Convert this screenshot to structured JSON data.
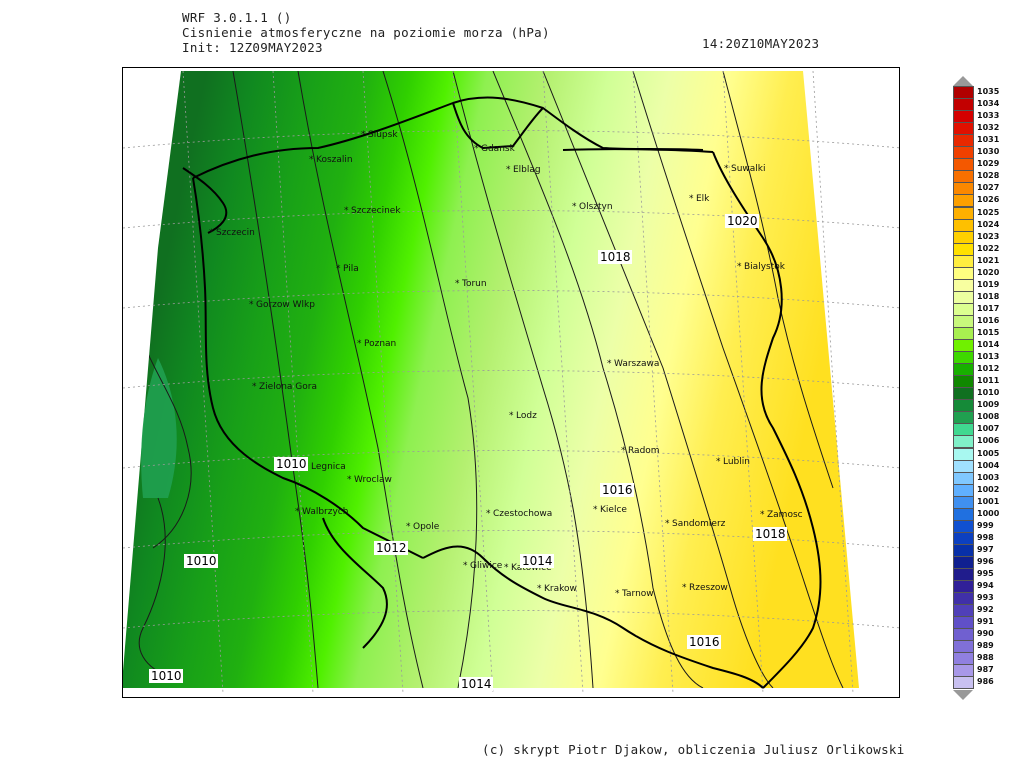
{
  "header": {
    "model": "WRF 3.0.1.1 ()",
    "variable": "Cisnienie atmosferyczne na poziomie morza (hPa)",
    "init": "Init: 12Z09MAY2023",
    "valid": "14:20Z10MAY2023"
  },
  "footer": {
    "credit": "(c) skrypt Piotr Djakow, obliczenia Juliusz Orlikowski"
  },
  "legend": {
    "levels": [
      "1035",
      "1034",
      "1033",
      "1032",
      "1031",
      "1030",
      "1029",
      "1028",
      "1027",
      "1026",
      "1025",
      "1024",
      "1023",
      "1022",
      "1021",
      "1020",
      "1019",
      "1018",
      "1017",
      "1016",
      "1015",
      "1014",
      "1013",
      "1012",
      "1011",
      "1010",
      "1009",
      "1008",
      "1007",
      "1006",
      "1005",
      "1004",
      "1003",
      "1002",
      "1001",
      "1000",
      "999",
      "998",
      "997",
      "996",
      "995",
      "994",
      "993",
      "992",
      "991",
      "990",
      "989",
      "988",
      "987",
      "986"
    ],
    "colors": [
      "#b00000",
      "#c20000",
      "#d40000",
      "#e01000",
      "#e82800",
      "#f04000",
      "#f45800",
      "#f87000",
      "#fb8800",
      "#fda000",
      "#feb000",
      "#fec000",
      "#ffd000",
      "#ffe000",
      "#ffee40",
      "#ffff80",
      "#f8ffa0",
      "#ecffa0",
      "#dcff90",
      "#c8f87c",
      "#a8f050",
      "#70f000",
      "#3ed800",
      "#18b000",
      "#108800",
      "#107020",
      "#158a38",
      "#20a050",
      "#40d890",
      "#80f0c8",
      "#a8f8f0",
      "#a0e0ff",
      "#80c8ff",
      "#60b0ff",
      "#4090f0",
      "#2070e0",
      "#1050d0",
      "#0c40c0",
      "#0830a8",
      "#102090",
      "#201c8c",
      "#302098",
      "#4030a8",
      "#5040b8",
      "#6050c8",
      "#7060d0",
      "#8070d8",
      "#9080e0",
      "#a898e8",
      "#c8c0f0"
    ]
  },
  "map": {
    "cities": [
      {
        "name": "Slupsk"
      },
      {
        "name": "Gdansk"
      },
      {
        "name": "Koszalin"
      },
      {
        "name": "Elblag"
      },
      {
        "name": "Suwalki"
      },
      {
        "name": "Szczecinek"
      },
      {
        "name": "Olsztyn"
      },
      {
        "name": "Elk"
      },
      {
        "name": "Szczecin"
      },
      {
        "name": "Pila"
      },
      {
        "name": "Torun"
      },
      {
        "name": "Bialystok"
      },
      {
        "name": "Gorzow Wlkp"
      },
      {
        "name": "Poznan"
      },
      {
        "name": "Warszawa"
      },
      {
        "name": "Zielona Gora"
      },
      {
        "name": "Lodz"
      },
      {
        "name": "Radom"
      },
      {
        "name": "Lublin"
      },
      {
        "name": "Legnica"
      },
      {
        "name": "Wroclaw"
      },
      {
        "name": "Kielce"
      },
      {
        "name": "Walbrzych"
      },
      {
        "name": "Czestochowa"
      },
      {
        "name": "Sandomierz"
      },
      {
        "name": "Zamosc"
      },
      {
        "name": "Opole"
      },
      {
        "name": "Gliwice"
      },
      {
        "name": "Katowice"
      },
      {
        "name": "Krakow"
      },
      {
        "name": "Tarnow"
      },
      {
        "name": "Rzeszow"
      }
    ],
    "contour_labels": [
      {
        "value": "1020"
      },
      {
        "value": "1018"
      },
      {
        "value": "1010"
      },
      {
        "value": "1016"
      },
      {
        "value": "1012"
      },
      {
        "value": "1014"
      },
      {
        "value": "1010"
      },
      {
        "value": "1018"
      },
      {
        "value": "1016"
      },
      {
        "value": "1010"
      },
      {
        "value": "1014"
      }
    ]
  }
}
